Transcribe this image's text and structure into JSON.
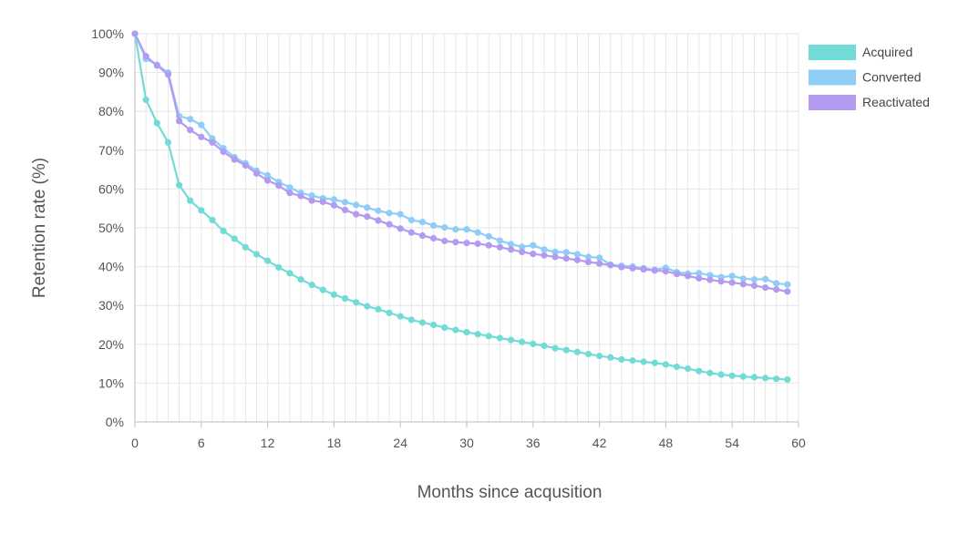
{
  "chart_data": {
    "type": "line",
    "title": "",
    "xlabel": "Months since acqusition",
    "ylabel": "Retention rate (%)",
    "xlim": [
      0,
      60
    ],
    "ylim": [
      0,
      100
    ],
    "x_ticks": [
      0,
      6,
      12,
      18,
      24,
      30,
      36,
      42,
      48,
      54,
      60
    ],
    "y_ticks": [
      "0%",
      "10%",
      "20%",
      "30%",
      "40%",
      "50%",
      "60%",
      "70%",
      "80%",
      "90%",
      "100%"
    ],
    "grid": true,
    "legend_position": "right",
    "x": [
      0,
      1,
      2,
      3,
      4,
      5,
      6,
      7,
      8,
      9,
      10,
      11,
      12,
      13,
      14,
      15,
      16,
      17,
      18,
      19,
      20,
      21,
      22,
      23,
      24,
      25,
      26,
      27,
      28,
      29,
      30,
      31,
      32,
      33,
      34,
      35,
      36,
      37,
      38,
      39,
      40,
      41,
      42,
      43,
      44,
      45,
      46,
      47,
      48,
      49,
      50,
      51,
      52,
      53,
      54,
      55,
      56,
      57,
      58,
      59
    ],
    "series": [
      {
        "name": "Acquired",
        "color": "#72DBD6",
        "values": [
          100,
          83,
          77,
          72,
          61,
          57,
          54.5,
          52,
          49.2,
          47.2,
          45,
          43.2,
          41.5,
          39.8,
          38.3,
          36.7,
          35.3,
          34,
          32.8,
          31.8,
          30.8,
          29.8,
          29,
          28.1,
          27.2,
          26.3,
          25.6,
          25,
          24.3,
          23.7,
          23.1,
          22.6,
          22.1,
          21.6,
          21.1,
          20.6,
          20.1,
          19.6,
          19,
          18.5,
          18,
          17.5,
          17,
          16.6,
          16.1,
          15.8,
          15.5,
          15.2,
          14.8,
          14.2,
          13.7,
          13.1,
          12.6,
          12.2,
          11.9,
          11.7,
          11.5,
          11.3,
          11.1,
          10.9
        ]
      },
      {
        "name": "Converted",
        "color": "#8FCDF7",
        "values": [
          100,
          93.5,
          92,
          90,
          78.8,
          78,
          76.5,
          73,
          70.5,
          68.2,
          66.6,
          64.7,
          63.5,
          61.8,
          60.4,
          59,
          58.3,
          57.6,
          57.3,
          56.6,
          55.9,
          55.2,
          54.4,
          53.8,
          53.5,
          52,
          51.5,
          50.6,
          50.1,
          49.6,
          49.6,
          48.8,
          47.8,
          46.7,
          45.8,
          45.1,
          45.5,
          44.4,
          43.8,
          43.7,
          43.2,
          42.5,
          42.3,
          40.5,
          40.2,
          40,
          39.6,
          39.2,
          39.7,
          38.6,
          38.2,
          38.3,
          37.8,
          37.3,
          37.6,
          36.9,
          36.7,
          36.8,
          35.7,
          35.4
        ]
      },
      {
        "name": "Reactivated",
        "color": "#B29BF0",
        "values": [
          100,
          94.2,
          91.8,
          89.5,
          77.5,
          75.2,
          73.4,
          72,
          69.6,
          67.6,
          66.1,
          64,
          62.2,
          60.9,
          59,
          58.2,
          57,
          56.7,
          55.8,
          54.6,
          53.5,
          52.9,
          51.9,
          50.9,
          49.8,
          48.8,
          48,
          47.3,
          46.6,
          46.3,
          46.1,
          45.9,
          45.5,
          45,
          44.4,
          43.8,
          43.3,
          42.9,
          42.5,
          42.1,
          41.7,
          41.2,
          40.8,
          40.4,
          39.9,
          39.6,
          39.3,
          39,
          38.8,
          38.1,
          37.6,
          37,
          36.6,
          36.2,
          35.9,
          35.5,
          35.1,
          34.6,
          34.1,
          33.6
        ]
      }
    ]
  }
}
